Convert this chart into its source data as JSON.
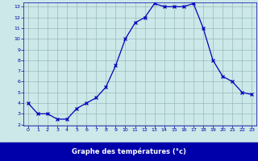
{
  "hours": [
    0,
    1,
    2,
    3,
    4,
    5,
    6,
    7,
    8,
    9,
    10,
    11,
    12,
    13,
    14,
    15,
    16,
    17,
    18,
    19,
    20,
    21,
    22,
    23
  ],
  "temps": [
    4.0,
    3.0,
    3.0,
    2.5,
    2.5,
    3.5,
    4.0,
    4.5,
    5.5,
    7.5,
    10.0,
    11.5,
    12.0,
    13.3,
    13.0,
    13.0,
    13.0,
    13.3,
    11.0,
    8.0,
    6.5,
    6.0,
    5.0,
    4.8
  ],
  "xlabel": "Graphe des températures (°c)",
  "ylim_min": 2.0,
  "ylim_max": 13.4,
  "xlim_min": -0.5,
  "xlim_max": 23.5,
  "yticks": [
    2,
    3,
    4,
    5,
    6,
    7,
    8,
    9,
    10,
    11,
    12,
    13
  ],
  "xticks": [
    0,
    1,
    2,
    3,
    4,
    5,
    6,
    7,
    8,
    9,
    10,
    11,
    12,
    13,
    14,
    15,
    16,
    17,
    18,
    19,
    20,
    21,
    22,
    23
  ],
  "line_color": "#0000bb",
  "bg_color": "#cce8e8",
  "grid_color": "#99bbbb",
  "label_bar_color": "#0000aa",
  "label_text_color": "#ffffff",
  "tick_color": "#0000aa"
}
